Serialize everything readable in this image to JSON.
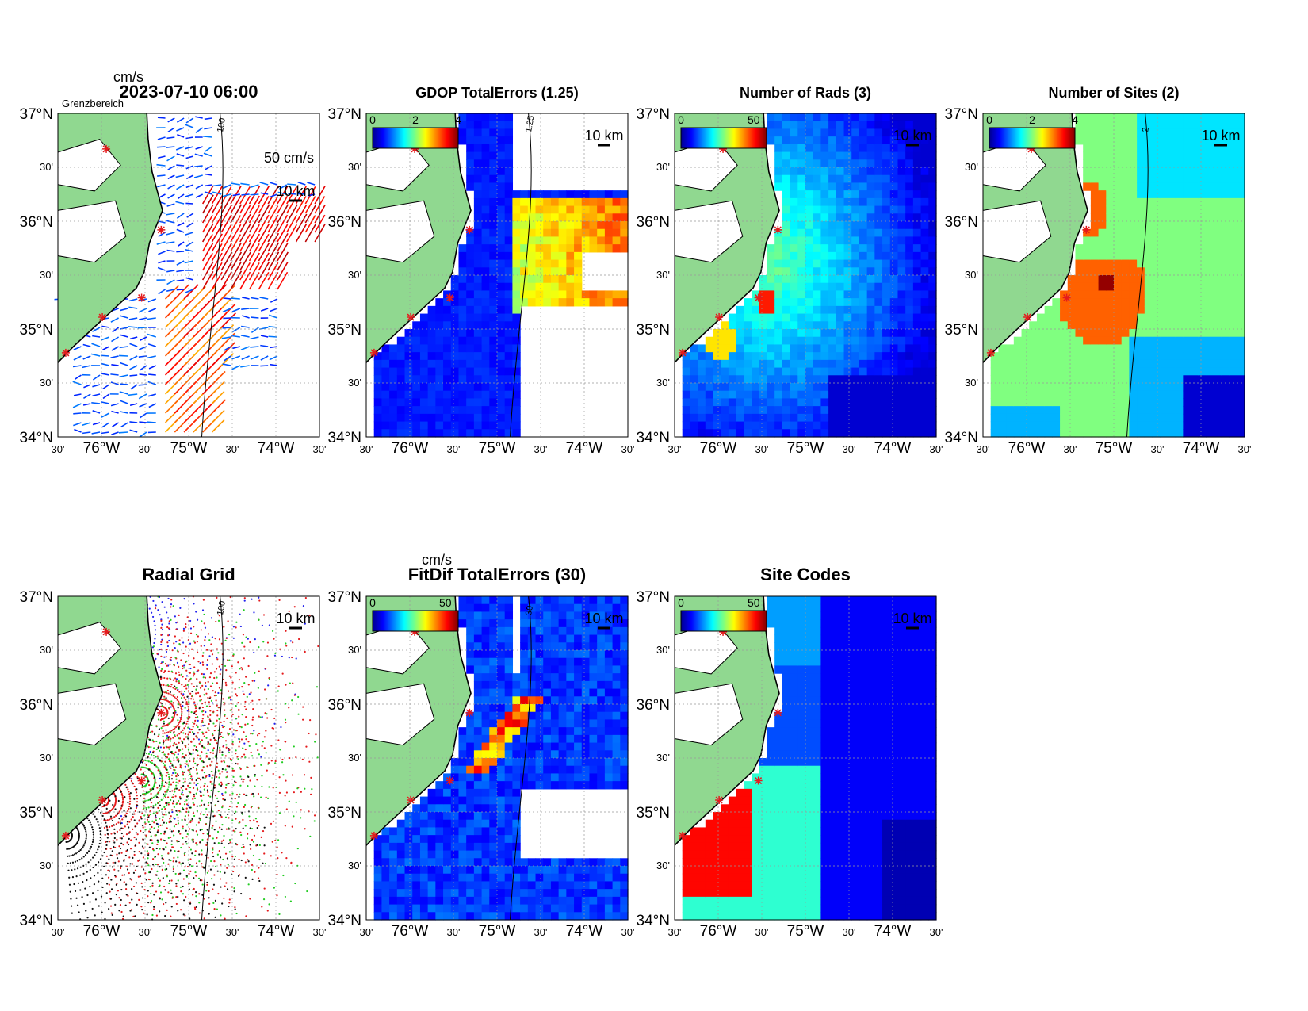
{
  "figure": {
    "timestamp": "2023-07-10 06:00",
    "lat_ticks": [
      "37°N",
      "30'",
      "36°N",
      "30'",
      "35°N",
      "30'",
      "34°N"
    ],
    "lon_ticks": [
      "30'",
      "76°W",
      "30'",
      "75°W",
      "30'",
      "74°W",
      "30'"
    ],
    "lat_range": [
      34,
      37
    ],
    "lon_range": [
      -76.5,
      -73.5
    ],
    "scale_bar_label": "10 km",
    "site_marker_color": "#e41a1c",
    "land_color": "#90d890",
    "colormap": "jet"
  },
  "panels": [
    {
      "id": "currents",
      "title": "2023-07-10 06:00",
      "type": "vectors",
      "unit_label": "cm/s",
      "colorbar_ticks": [],
      "overlay_text": "Grenzbereich",
      "reference_vector_label": "50 cm/s",
      "contour_label": "100"
    },
    {
      "id": "gdop",
      "title": "GDOP TotalErrors (1.25)",
      "type": "field",
      "colorbar_ticks": [
        "0",
        "2",
        "4"
      ],
      "contour_label": "1.25"
    },
    {
      "id": "nrads",
      "title": "Number of Rads (3)",
      "type": "field",
      "colorbar_ticks": [
        "0",
        "50"
      ]
    },
    {
      "id": "nsites",
      "title": "Number of Sites (2)",
      "type": "field",
      "colorbar_ticks": [
        "0",
        "2",
        "4"
      ],
      "contour_label": "2"
    },
    {
      "id": "radgrid",
      "title": "Radial Grid",
      "type": "radial",
      "colorbar_ticks": [],
      "contour_label": "100"
    },
    {
      "id": "fitdif",
      "title": "FitDif TotalErrors (30)",
      "type": "field",
      "unit_label": "cm/s",
      "colorbar_ticks": [
        "0",
        "50"
      ],
      "contour_label": "30"
    },
    {
      "id": "sitecodes",
      "title": "Site Codes",
      "type": "field",
      "colorbar_ticks": [
        "0",
        "50"
      ]
    }
  ]
}
